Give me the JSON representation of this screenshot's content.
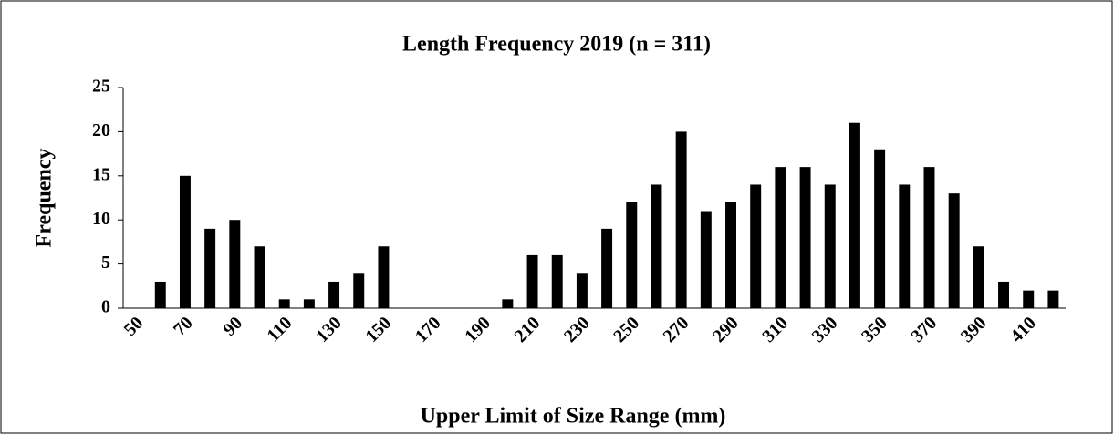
{
  "chart_data": {
    "type": "bar",
    "title": "Length Frequency 2019 (n = 311)",
    "x_label": "Upper Limit of Size Range (mm)",
    "y_label": "Frequency",
    "categories": [
      "50",
      null,
      "70",
      null,
      "90",
      null,
      "110",
      null,
      "130",
      null,
      "150",
      null,
      "170",
      null,
      "190",
      null,
      "210",
      null,
      "230",
      null,
      "250",
      null,
      "270",
      null,
      "290",
      null,
      "310",
      null,
      "330",
      null,
      "350",
      null,
      "370",
      null,
      "390",
      null,
      "410",
      null
    ],
    "values": [
      0,
      3,
      15,
      9,
      10,
      7,
      1,
      1,
      3,
      4,
      7,
      0,
      0,
      0,
      0,
      1,
      6,
      6,
      4,
      9,
      12,
      14,
      20,
      11,
      12,
      14,
      16,
      16,
      14,
      21,
      18,
      14,
      16,
      13,
      7,
      3,
      2,
      2
    ],
    "color": "#000000",
    "ylim": [
      0,
      25
    ],
    "yticks": [
      0,
      5,
      10,
      15,
      20,
      25
    ],
    "grid": false
  }
}
